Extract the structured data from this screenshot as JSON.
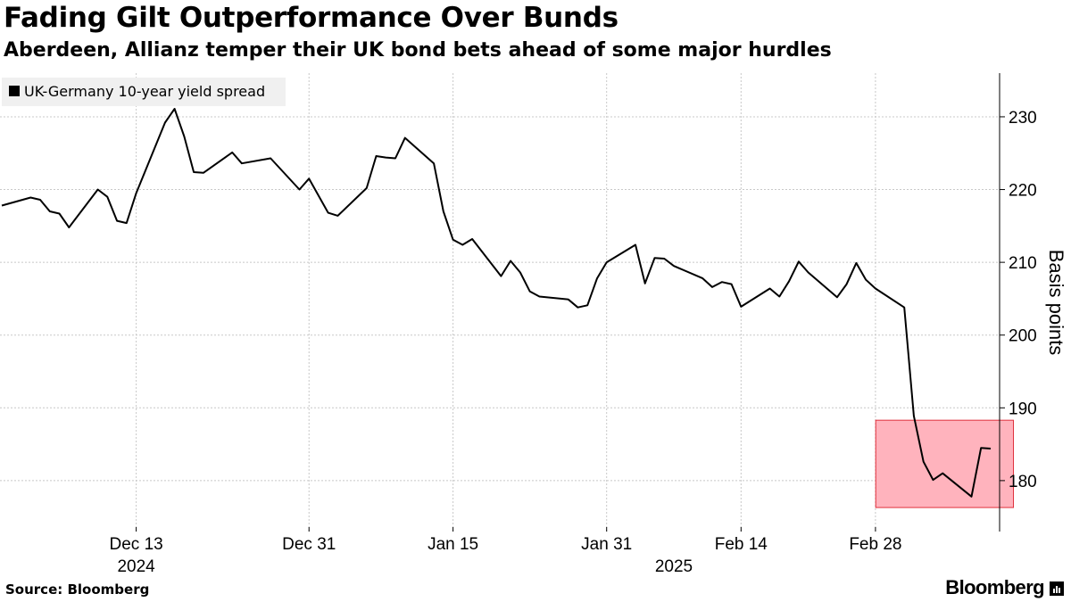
{
  "title": "Fading Gilt Outperformance Over Bunds",
  "subtitle": "Aberdeen, Allianz temper their UK bond bets ahead of some major hurdles",
  "source": "Source: Bloomberg",
  "brand": "Bloomberg",
  "colors": {
    "line": "#000000",
    "grid": "#c8c8c8",
    "highlight_fill": "#ffb3bd",
    "highlight_stroke": "#e0303c",
    "legend_bg": "#f0f0f0"
  },
  "chart_data": {
    "type": "line",
    "title": "Fading Gilt Outperformance Over Bunds",
    "subtitle": "Aberdeen, Allianz temper their UK bond bets ahead of some major hurdles",
    "xlabel": "",
    "ylabel": "Basis points",
    "ylim": [
      173,
      236
    ],
    "y_ticks": [
      180,
      190,
      200,
      210,
      220,
      230
    ],
    "grid": true,
    "legend_position": "top-left",
    "x_tick_labels": [
      {
        "date": "2024-12-13",
        "label": "Dec 13"
      },
      {
        "date": "2024-12-31",
        "label": "Dec 31"
      },
      {
        "date": "2025-01-15",
        "label": "Jan 15"
      },
      {
        "date": "2025-01-31",
        "label": "Jan 31"
      },
      {
        "date": "2025-02-14",
        "label": "Feb 14"
      },
      {
        "date": "2025-02-28",
        "label": "Feb 28"
      }
    ],
    "year_labels": [
      {
        "date": "2024-12-13",
        "label": "2024"
      },
      {
        "date": "2025-02-07",
        "label": "2025"
      }
    ],
    "highlight": {
      "x_start": "2025-03-03",
      "x_end": "2025-03-14",
      "y_range": [
        176.3,
        188.3
      ]
    },
    "series": [
      {
        "name": "UK-Germany 10-year yield spread",
        "points": [
          [
            "2024-11-29",
            217.8
          ],
          [
            "2024-12-02",
            218.9
          ],
          [
            "2024-12-03",
            218.6
          ],
          [
            "2024-12-04",
            217.0
          ],
          [
            "2024-12-05",
            216.7
          ],
          [
            "2024-12-06",
            214.8
          ],
          [
            "2024-12-09",
            220.0
          ],
          [
            "2024-12-10",
            219.0
          ],
          [
            "2024-12-11",
            215.7
          ],
          [
            "2024-12-12",
            215.4
          ],
          [
            "2024-12-13",
            219.5
          ],
          [
            "2024-12-16",
            229.2
          ],
          [
            "2024-12-17",
            231.1
          ],
          [
            "2024-12-18",
            227.3
          ],
          [
            "2024-12-19",
            222.4
          ],
          [
            "2024-12-20",
            222.3
          ],
          [
            "2024-12-23",
            225.1
          ],
          [
            "2024-12-24",
            223.6
          ],
          [
            "2024-12-27",
            224.3
          ],
          [
            "2024-12-30",
            220.0
          ],
          [
            "2024-12-31",
            221.5
          ],
          [
            "2025-01-02",
            216.8
          ],
          [
            "2025-01-03",
            216.4
          ],
          [
            "2025-01-06",
            220.2
          ],
          [
            "2025-01-07",
            224.6
          ],
          [
            "2025-01-08",
            224.4
          ],
          [
            "2025-01-09",
            224.3
          ],
          [
            "2025-01-10",
            227.1
          ],
          [
            "2025-01-13",
            223.6
          ],
          [
            "2025-01-14",
            217.0
          ],
          [
            "2025-01-15",
            213.1
          ],
          [
            "2025-01-16",
            212.4
          ],
          [
            "2025-01-17",
            213.2
          ],
          [
            "2025-01-20",
            208.1
          ],
          [
            "2025-01-21",
            210.2
          ],
          [
            "2025-01-22",
            208.6
          ],
          [
            "2025-01-23",
            206.0
          ],
          [
            "2025-01-24",
            205.3
          ],
          [
            "2025-01-27",
            204.9
          ],
          [
            "2025-01-28",
            203.8
          ],
          [
            "2025-01-29",
            204.1
          ],
          [
            "2025-01-30",
            207.8
          ],
          [
            "2025-01-31",
            210.0
          ],
          [
            "2025-02-03",
            212.4
          ],
          [
            "2025-02-04",
            207.1
          ],
          [
            "2025-02-05",
            210.6
          ],
          [
            "2025-02-06",
            210.5
          ],
          [
            "2025-02-07",
            209.5
          ],
          [
            "2025-02-10",
            207.8
          ],
          [
            "2025-02-11",
            206.6
          ],
          [
            "2025-02-12",
            207.3
          ],
          [
            "2025-02-13",
            207.0
          ],
          [
            "2025-02-14",
            203.9
          ],
          [
            "2025-02-17",
            206.4
          ],
          [
            "2025-02-18",
            205.3
          ],
          [
            "2025-02-19",
            207.4
          ],
          [
            "2025-02-20",
            210.1
          ],
          [
            "2025-02-21",
            208.6
          ],
          [
            "2025-02-24",
            205.2
          ],
          [
            "2025-02-25",
            207.0
          ],
          [
            "2025-02-26",
            209.9
          ],
          [
            "2025-02-27",
            207.6
          ],
          [
            "2025-02-28",
            206.4
          ],
          [
            "2025-03-03",
            203.8
          ],
          [
            "2025-03-04",
            188.9
          ],
          [
            "2025-03-05",
            182.6
          ],
          [
            "2025-03-06",
            180.1
          ],
          [
            "2025-03-07",
            181.0
          ],
          [
            "2025-03-10",
            177.8
          ],
          [
            "2025-03-11",
            184.5
          ],
          [
            "2025-03-12",
            184.4
          ]
        ]
      }
    ]
  }
}
